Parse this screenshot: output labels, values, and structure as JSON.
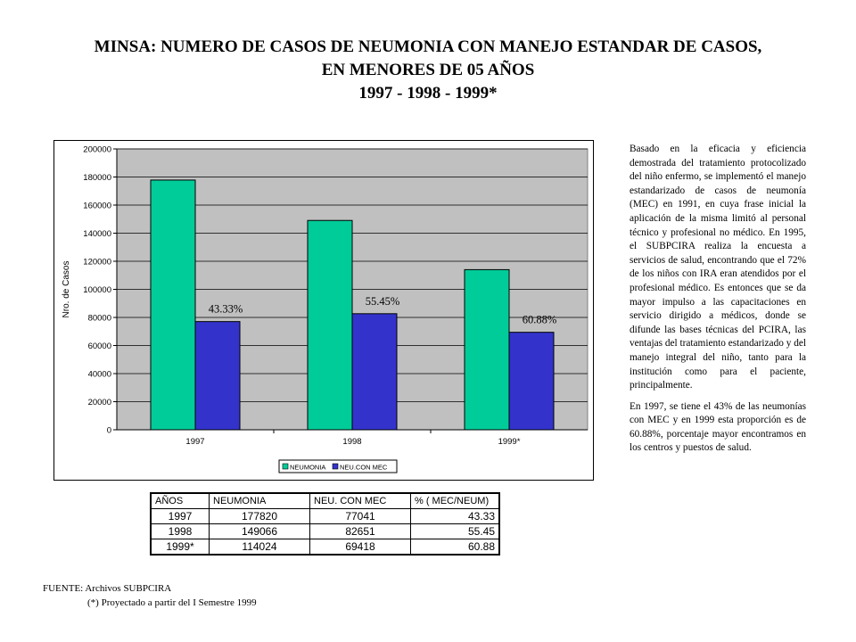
{
  "title": {
    "line1": "MINSA: NUMERO DE CASOS DE NEUMONIA CON MANEJO ESTANDAR  DE CASOS,",
    "line2": "EN MENORES DE 05 AÑOS",
    "line3": "1997 - 1998 - 1999*"
  },
  "chart_data": {
    "type": "bar",
    "categories": [
      "1997",
      "1998",
      "1999*"
    ],
    "series": [
      {
        "name": "NEUMONIA",
        "color": "#00cc99",
        "values": [
          177820,
          149066,
          114024
        ]
      },
      {
        "name": "NEU.CON MEC",
        "color": "#3333cc",
        "values": [
          77041,
          82651,
          69418
        ]
      }
    ],
    "percent_labels": [
      "43.33%",
      "55.45%",
      "60.88%"
    ],
    "ylabel": "Nro. de Casos",
    "ylim": [
      0,
      200000
    ],
    "yticks": [
      0,
      20000,
      40000,
      60000,
      80000,
      100000,
      120000,
      140000,
      160000,
      180000,
      200000
    ],
    "plot_background": "#c0c0c0",
    "grid": true,
    "legend_position": "bottom-center"
  },
  "table": {
    "headers": [
      "AÑOS",
      "NEUMONIA",
      "NEU. CON MEC",
      "% ( MEC/NEUM)"
    ],
    "rows": [
      [
        "1997",
        "177820",
        "77041",
        "43.33"
      ],
      [
        "1998",
        "149066",
        "82651",
        "55.45"
      ],
      [
        "1999*",
        "114024",
        "69418",
        "60.88"
      ]
    ]
  },
  "description": {
    "p1": "Basado en la eficacia y eficiencia demostrada del tratamiento protocolizado del niño enfermo, se implementó el manejo estandarizado de casos de neumonía (MEC) en 1991, en cuya frase inicial la aplicación de la misma limitó al personal técnico y profesional no médico. En 1995, el SUBPCIRA realiza la encuesta a servicios de salud, encontrando que el 72% de los niños con IRA eran atendidos por el profesional médico. Es entonces que se da mayor impulso a las capacitaciones en servicio dirigido a médicos, donde se difunde las bases técnicas del PCIRA, las ventajas del tratamiento estandarizado y del manejo integral del niño, tanto para la institución como para el paciente, principalmente.",
    "p2": "En 1997, se tiene el 43% de las neumonías con MEC y en 1999 esta proporción es de 60.88%, porcentaje mayor encontramos en los centros y puestos de salud."
  },
  "source": {
    "line1": "FUENTE: Archivos SUBPCIRA",
    "line2": "(*) Proyectado a partir del I Semestre 1999"
  }
}
